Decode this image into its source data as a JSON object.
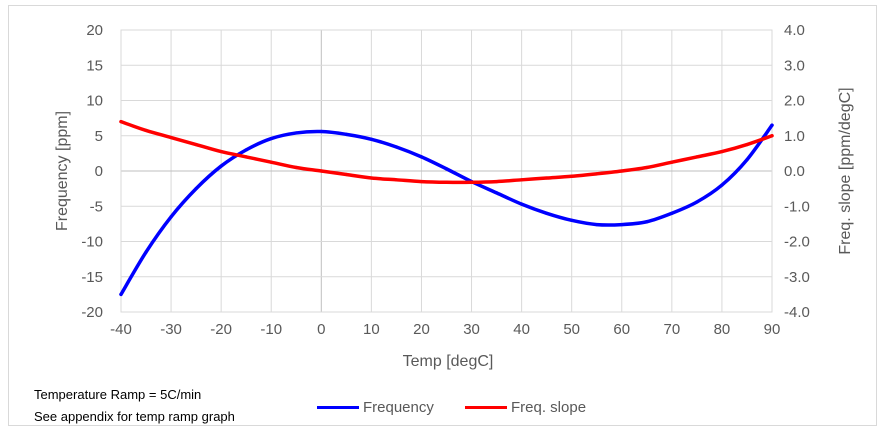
{
  "chart_data": {
    "type": "line",
    "xlabel": "Temp [degC]",
    "ylabel": "Frequency [ppm]",
    "y2label": "Freq. slope [ppm/degC]",
    "xlim": [
      -40,
      90
    ],
    "ylim": [
      -20,
      20
    ],
    "y2lim": [
      -4.0,
      4.0
    ],
    "x_ticks": [
      "-40",
      "-30",
      "-20",
      "-10",
      "0",
      "10",
      "20",
      "30",
      "40",
      "50",
      "60",
      "70",
      "80",
      "90"
    ],
    "y_ticks": [
      "20",
      "15",
      "10",
      "5",
      "0",
      "-5",
      "-10",
      "-15",
      "-20"
    ],
    "y2_ticks": [
      "4.0",
      "3.0",
      "2.0",
      "1.0",
      "0.0",
      "-1.0",
      "-2.0",
      "-3.0",
      "-4.0"
    ],
    "grid": true,
    "legend_position": "bottom",
    "series": [
      {
        "name": "Frequency",
        "axis": "left",
        "color": "#0000ff",
        "x": [
          -40,
          -35,
          -30,
          -25,
          -20,
          -15,
          -10,
          -5,
          0,
          5,
          10,
          15,
          20,
          25,
          30,
          35,
          40,
          45,
          50,
          55,
          60,
          65,
          70,
          75,
          80,
          85,
          90
        ],
        "values": [
          -17.5,
          -11.5,
          -6.5,
          -2.5,
          0.7,
          3.0,
          4.6,
          5.4,
          5.6,
          5.2,
          4.5,
          3.4,
          2.0,
          0.3,
          -1.5,
          -3.1,
          -4.7,
          -6.0,
          -7.0,
          -7.6,
          -7.6,
          -7.2,
          -6.0,
          -4.4,
          -2.0,
          1.6,
          6.5
        ]
      },
      {
        "name": "Freq. slope",
        "axis": "right",
        "color": "#ff0000",
        "x": [
          -40,
          -35,
          -30,
          -25,
          -20,
          -15,
          -10,
          -5,
          0,
          5,
          10,
          15,
          20,
          25,
          30,
          35,
          40,
          45,
          50,
          55,
          60,
          65,
          70,
          75,
          80,
          85,
          90
        ],
        "values": [
          1.4,
          1.15,
          0.95,
          0.75,
          0.55,
          0.4,
          0.25,
          0.1,
          0.0,
          -0.1,
          -0.2,
          -0.25,
          -0.3,
          -0.32,
          -0.32,
          -0.3,
          -0.25,
          -0.2,
          -0.15,
          -0.08,
          0.0,
          0.1,
          0.25,
          0.4,
          0.55,
          0.75,
          1.0
        ]
      }
    ]
  },
  "notes": {
    "line1": "Temperature Ramp = 5C/min",
    "line2": "See appendix for temp ramp graph"
  }
}
